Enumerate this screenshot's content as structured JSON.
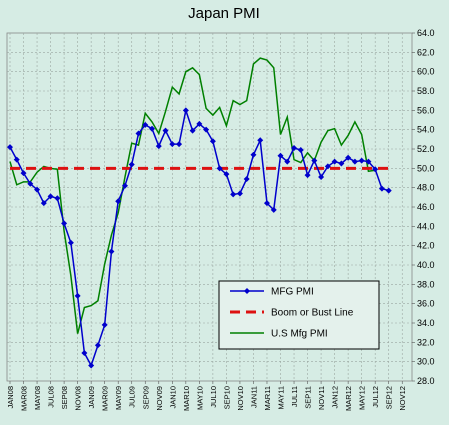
{
  "chart_data": {
    "type": "line",
    "title": "Japan PMI",
    "xlabel": "",
    "ylabel": "",
    "ylim": [
      28.0,
      64.0
    ],
    "y_step": 2.0,
    "grid": true,
    "legend_position": "bottom-right",
    "x_tick_labels": [
      "JAN08",
      "MAR08",
      "MAY08",
      "JUL08",
      "SEP08",
      "NOV08",
      "JAN09",
      "MAR09",
      "MAY09",
      "JUL09",
      "SEP09",
      "NOV09",
      "JAN10",
      "MAR10",
      "MAY10",
      "JUL10",
      "SEP10",
      "NOV10",
      "JAN11",
      "MAR11",
      "MAY11",
      "JUL11",
      "SEP11",
      "NOV11",
      "JAN12",
      "MAR12",
      "MAY12",
      "JUL12",
      "SEP12",
      "NOV12"
    ],
    "x_months": [
      "JAN08",
      "FEB08",
      "MAR08",
      "APR08",
      "MAY08",
      "JUN08",
      "JUL08",
      "AUG08",
      "SEP08",
      "OCT08",
      "NOV08",
      "DEC08",
      "JAN09",
      "FEB09",
      "MAR09",
      "APR09",
      "MAY09",
      "JUN09",
      "JUL09",
      "AUG09",
      "SEP09",
      "OCT09",
      "NOV09",
      "DEC09",
      "JAN10",
      "FEB10",
      "MAR10",
      "APR10",
      "MAY10",
      "JUN10",
      "JUL10",
      "AUG10",
      "SEP10",
      "OCT10",
      "NOV10",
      "DEC10",
      "JAN11",
      "FEB11",
      "MAR11",
      "APR11",
      "MAY11",
      "JUN11",
      "JUL11",
      "AUG11",
      "SEP11",
      "OCT11",
      "NOV11",
      "DEC11",
      "JAN12",
      "FEB12",
      "MAR12",
      "APR12",
      "MAY12",
      "JUN12",
      "JUL12",
      "AUG12",
      "SEP12",
      "OCT12",
      "NOV12",
      "DEC12"
    ],
    "series": [
      {
        "name": "MFG PMI",
        "color": "#0000cc",
        "style": "line-with-diamond-markers",
        "values": [
          52.2,
          50.9,
          49.5,
          48.4,
          47.8,
          46.4,
          47.1,
          46.9,
          44.3,
          42.3,
          36.8,
          30.9,
          29.6,
          31.7,
          33.8,
          41.4,
          46.6,
          48.2,
          50.4,
          53.6,
          54.5,
          54.1,
          52.3,
          53.9,
          52.5,
          52.5,
          56.0,
          53.9,
          54.6,
          54.0,
          52.8,
          50.0,
          49.4,
          47.3,
          47.4,
          48.9,
          51.4,
          52.9,
          46.4,
          45.7,
          51.3,
          50.7,
          52.1,
          51.9,
          49.3,
          50.8,
          49.1,
          50.2,
          50.7,
          50.5,
          51.1,
          50.7,
          50.8,
          50.7,
          49.9,
          47.9,
          47.7,
          null,
          null,
          null
        ]
      },
      {
        "name": "Boom or Bust Line",
        "color": "#dd1111",
        "style": "dashed",
        "values": [
          50.0,
          50.0,
          50.0,
          50.0,
          50.0,
          50.0,
          50.0,
          50.0,
          50.0,
          50.0,
          50.0,
          50.0,
          50.0,
          50.0,
          50.0,
          50.0,
          50.0,
          50.0,
          50.0,
          50.0,
          50.0,
          50.0,
          50.0,
          50.0,
          50.0,
          50.0,
          50.0,
          50.0,
          50.0,
          50.0,
          50.0,
          50.0,
          50.0,
          50.0,
          50.0,
          50.0,
          50.0,
          50.0,
          50.0,
          50.0,
          50.0,
          50.0,
          50.0,
          50.0,
          50.0,
          50.0,
          50.0,
          50.0,
          50.0,
          50.0,
          50.0,
          50.0,
          50.0,
          50.0,
          50.0,
          50.0,
          50.0,
          null,
          null,
          null
        ]
      },
      {
        "name": "U.S Mfg PMI",
        "color": "#008000",
        "style": "line",
        "values": [
          50.7,
          48.3,
          48.6,
          48.6,
          49.6,
          50.2,
          50.0,
          49.9,
          43.5,
          38.9,
          32.9,
          35.6,
          35.8,
          36.3,
          40.1,
          43.1,
          45.4,
          49.1,
          52.6,
          52.4,
          55.7,
          54.8,
          53.6,
          55.9,
          58.4,
          57.7,
          60.0,
          60.4,
          59.7,
          56.2,
          55.5,
          56.3,
          54.4,
          57.0,
          56.6,
          57.0,
          60.8,
          61.4,
          61.2,
          60.4,
          53.5,
          55.3,
          50.9,
          50.6,
          51.6,
          50.8,
          52.7,
          53.9,
          54.1,
          52.4,
          53.4,
          54.8,
          53.5,
          49.7,
          49.8,
          null,
          null,
          null,
          null,
          null
        ]
      }
    ]
  }
}
